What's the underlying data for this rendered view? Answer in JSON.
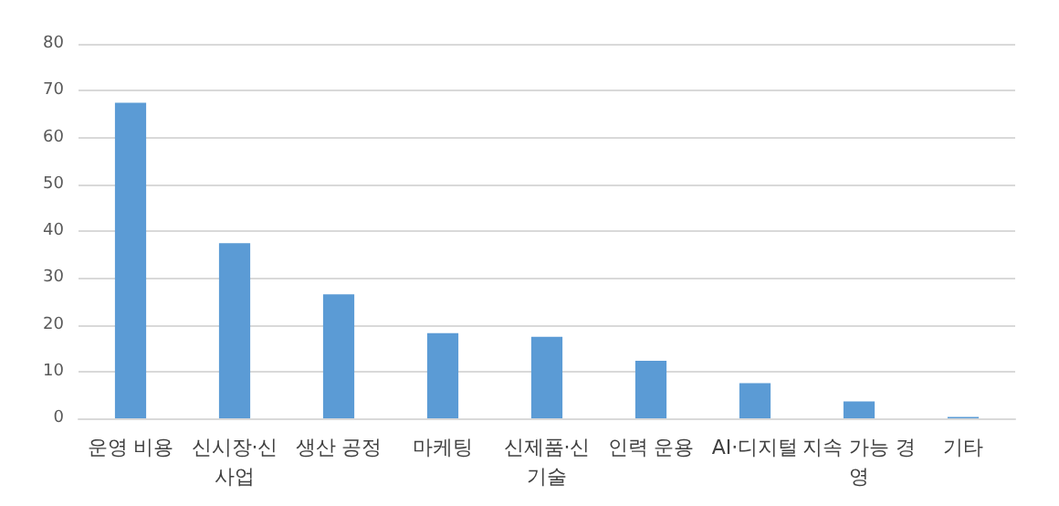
{
  "chart_data": {
    "type": "bar",
    "categories": [
      "운영 비용",
      "신시장·신사업",
      "생산 공정",
      "마케팅",
      "신제품·신기술",
      "인력 운용",
      "AI·디지털",
      "지속 가능 경영",
      "기타"
    ],
    "values": [
      67.4,
      37.4,
      26.5,
      18.2,
      17.4,
      12.3,
      7.5,
      3.6,
      0.3
    ],
    "color": "#5b9bd5",
    "ylim": [
      0,
      80
    ],
    "yticks": [
      0,
      10,
      20,
      30,
      40,
      50,
      60,
      70,
      80
    ],
    "grid": "y"
  }
}
